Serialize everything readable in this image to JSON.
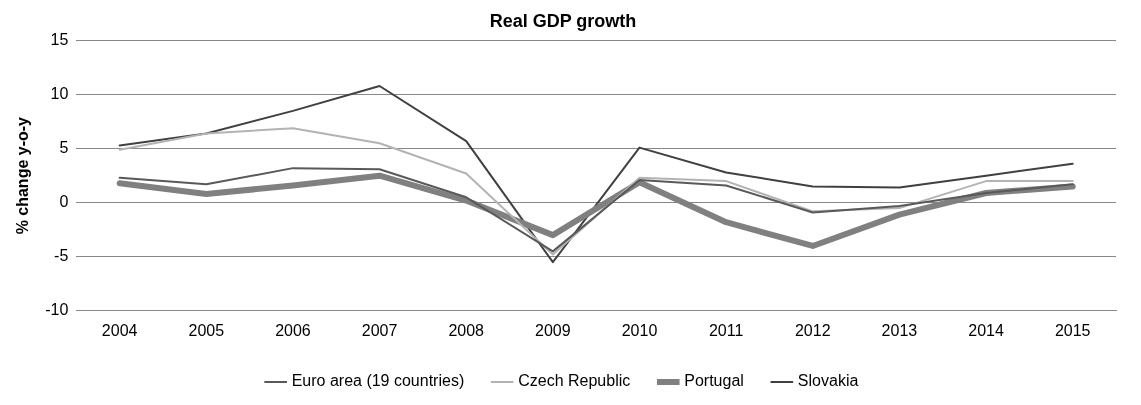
{
  "chart_data": {
    "type": "line",
    "title": "Real GDP growth",
    "ylabel": "% change y-o-y",
    "categories": [
      "2004",
      "2005",
      "2006",
      "2007",
      "2008",
      "2009",
      "2010",
      "2011",
      "2012",
      "2013",
      "2014",
      "2015"
    ],
    "series": [
      {
        "name": "Euro area (19 countries)",
        "color": "#595959",
        "values": [
          2.3,
          1.7,
          3.2,
          3.1,
          0.5,
          -4.5,
          2.1,
          1.6,
          -0.9,
          -0.3,
          0.9,
          1.7
        ]
      },
      {
        "name": "Czech Republic",
        "color": "#b3b3b3",
        "values": [
          4.9,
          6.4,
          6.9,
          5.5,
          2.7,
          -4.8,
          2.3,
          2.0,
          -0.8,
          -0.5,
          2.0,
          2.0
        ]
      },
      {
        "name": "Portugal",
        "color": "#808080",
        "values": [
          1.8,
          0.8,
          1.6,
          2.5,
          0.2,
          -3.0,
          1.9,
          -1.8,
          -4.0,
          -1.1,
          0.9,
          1.5
        ]
      },
      {
        "name": "Slovakia",
        "color": "#404040",
        "values": [
          5.3,
          6.4,
          8.5,
          10.8,
          5.7,
          -5.5,
          5.1,
          2.8,
          1.5,
          1.4,
          2.5,
          3.6
        ]
      }
    ],
    "ylim": [
      -10,
      15
    ],
    "yticks": [
      -10,
      -5,
      0,
      5,
      10,
      15
    ],
    "grid": "y",
    "legend": "bottom",
    "marker": "none",
    "line_style": "solid"
  }
}
